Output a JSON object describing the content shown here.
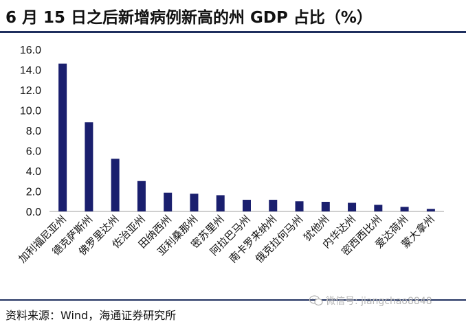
{
  "title": "6 月 15 日之后新增病例新高的州 GDP 占比（%）",
  "source": "资料来源：Wind，海通证券研究所",
  "watermark": {
    "text": "微信号: jiangchao8848",
    "icon": "wechat-icon"
  },
  "colors": {
    "bar": "#1a1f6e",
    "axis": "#bfbfbf",
    "rule": "#1f2f5e"
  },
  "chart_data": {
    "type": "bar",
    "categories": [
      "加利福尼亚州",
      "德克萨斯州",
      "佛罗里达州",
      "佐治亚州",
      "田纳西州",
      "亚利桑那州",
      "密苏里州",
      "阿拉巴马州",
      "南卡罗来纳州",
      "俄克拉何马州",
      "犹他州",
      "内华达州",
      "密西西比州",
      "爱达荷州",
      "蒙大拿州"
    ],
    "values": [
      14.6,
      8.8,
      5.2,
      3.0,
      1.85,
      1.75,
      1.6,
      1.15,
      1.15,
      1.0,
      0.95,
      0.85,
      0.65,
      0.45,
      0.25
    ],
    "yticks": [
      "0.0",
      "2.0",
      "4.0",
      "6.0",
      "8.0",
      "10.0",
      "12.0",
      "14.0",
      "16.0"
    ],
    "ylim": [
      0,
      16
    ],
    "xlabel": "",
    "ylabel": "",
    "grid": false
  }
}
